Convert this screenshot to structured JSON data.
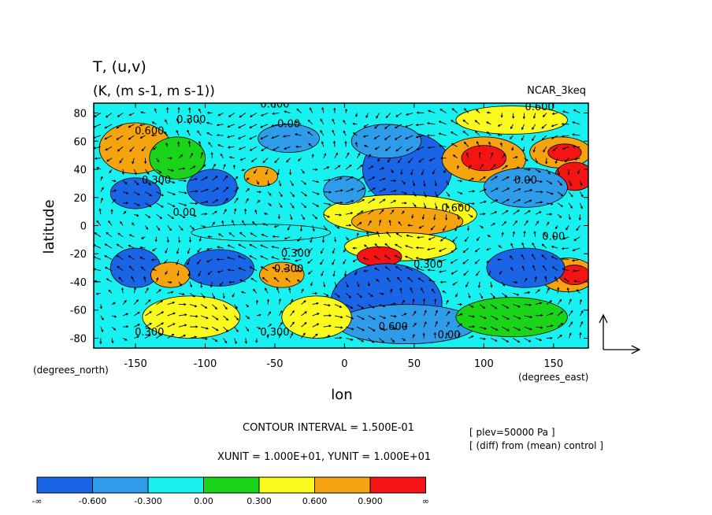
{
  "chart_data": {
    "type": "heatmap",
    "title": "T, (u,v)",
    "subtitle": "(K, (m s-1, m s-1))",
    "source": "NCAR_3keq",
    "xlabel": "lon",
    "ylabel": "latitude",
    "x_unit_label": "(degrees_east)",
    "y_unit_label": "(degrees_north)",
    "xlim": [
      -180,
      175
    ],
    "ylim": [
      -87,
      87
    ],
    "x_ticks": [
      {
        "value": -150,
        "label": "-150"
      },
      {
        "value": -100,
        "label": "-100"
      },
      {
        "value": -50,
        "label": "-50"
      },
      {
        "value": 0,
        "label": "0"
      },
      {
        "value": 50,
        "label": "50"
      },
      {
        "value": 100,
        "label": "100"
      },
      {
        "value": 150,
        "label": "150"
      }
    ],
    "y_ticks": [
      {
        "value": 80,
        "label": "80"
      },
      {
        "value": 60,
        "label": "60"
      },
      {
        "value": 40,
        "label": "40"
      },
      {
        "value": 20,
        "label": "20"
      },
      {
        "value": 0,
        "label": "0"
      },
      {
        "value": -20,
        "label": "-20"
      },
      {
        "value": -40,
        "label": "-40"
      },
      {
        "value": -60,
        "label": "-60"
      },
      {
        "value": -80,
        "label": "-80"
      }
    ],
    "contour_interval_text": "CONTOUR INTERVAL = 1.500E-01",
    "unit_text": "XUNIT = 1.000E+01, YUNIT = 1.000E+01",
    "notes": [
      "[ plev=50000 Pa ]",
      "[ (diff) from (mean) control ]"
    ],
    "colorbar": {
      "labels": [
        "-∞",
        "-0.600",
        "-0.300",
        "0.00",
        "0.300",
        "0.600",
        "0.900",
        "∞"
      ],
      "colors": [
        "#1a64e6",
        "#2e9ce8",
        "#19f0f0",
        "#19d419",
        "#fafa1e",
        "#f5a30f",
        "#f51414"
      ]
    },
    "contour_labels": [
      {
        "text": "0.600",
        "lon": -50,
        "lat": 84
      },
      {
        "text": "0.300",
        "lon": -110,
        "lat": 73
      },
      {
        "text": "0.600",
        "lon": -140,
        "lat": 65
      },
      {
        "text": "0.00",
        "lon": -40,
        "lat": 70
      },
      {
        "text": "0.600",
        "lon": 140,
        "lat": 82
      },
      {
        "text": "0.300",
        "lon": -135,
        "lat": 30
      },
      {
        "text": "0.00",
        "lon": 130,
        "lat": 30
      },
      {
        "text": "0.600",
        "lon": 80,
        "lat": 10
      },
      {
        "text": "0.00",
        "lon": -115,
        "lat": 7
      },
      {
        "text": "0.300",
        "lon": -35,
        "lat": -22
      },
      {
        "text": "0.300",
        "lon": -40,
        "lat": -33
      },
      {
        "text": "0.00",
        "lon": 150,
        "lat": -10
      },
      {
        "text": "0.300",
        "lon": 60,
        "lat": -30
      },
      {
        "text": "0.300",
        "lon": -140,
        "lat": -78
      },
      {
        "text": "0.300",
        "lon": -50,
        "lat": -78
      },
      {
        "text": "0.600",
        "lon": 35,
        "lat": -74
      },
      {
        "text": "0.00",
        "lon": 75,
        "lat": -80
      }
    ],
    "regions": [
      {
        "lon": -158,
        "lat": 58,
        "rx": 16,
        "ry": 10,
        "value": 1.0
      },
      {
        "lon": -150,
        "lat": 55,
        "rx": 26,
        "ry": 18,
        "value": 0.75
      },
      {
        "lon": -150,
        "lat": 23,
        "rx": 18,
        "ry": 11,
        "value": -0.75
      },
      {
        "lon": -95,
        "lat": 27,
        "rx": 18,
        "ry": 13,
        "value": -0.75
      },
      {
        "lon": -60,
        "lat": 35,
        "rx": 12,
        "ry": 7,
        "value": 0.75
      },
      {
        "lon": -40,
        "lat": 62,
        "rx": 22,
        "ry": 10,
        "value": -0.45
      },
      {
        "lon": -120,
        "lat": 48,
        "rx": 20,
        "ry": 15,
        "value": 0.15
      },
      {
        "lon": 45,
        "lat": 40,
        "rx": 32,
        "ry": 26,
        "value": -0.75
      },
      {
        "lon": 30,
        "lat": 60,
        "rx": 25,
        "ry": 12,
        "value": -0.45
      },
      {
        "lon": 100,
        "lat": 47,
        "rx": 30,
        "ry": 16,
        "value": 0.75
      },
      {
        "lon": 100,
        "lat": 48,
        "rx": 16,
        "ry": 9,
        "value": 1.0
      },
      {
        "lon": 155,
        "lat": 52,
        "rx": 22,
        "ry": 11,
        "value": 0.75
      },
      {
        "lon": 158,
        "lat": 52,
        "rx": 12,
        "ry": 6,
        "value": 1.0
      },
      {
        "lon": 165,
        "lat": 35,
        "rx": 14,
        "ry": 10,
        "value": 1.0
      },
      {
        "lon": 130,
        "lat": 27,
        "rx": 30,
        "ry": 14,
        "value": -0.45
      },
      {
        "lon": 120,
        "lat": 75,
        "rx": 40,
        "ry": 10,
        "value": 0.45
      },
      {
        "lon": 40,
        "lat": 8,
        "rx": 55,
        "ry": 14,
        "value": 0.45
      },
      {
        "lon": 45,
        "lat": 3,
        "rx": 40,
        "ry": 10,
        "value": 0.75
      },
      {
        "lon": 40,
        "lat": -15,
        "rx": 40,
        "ry": 10,
        "value": 0.45
      },
      {
        "lon": 25,
        "lat": -22,
        "rx": 16,
        "ry": 7,
        "value": 1.0
      },
      {
        "lon": 30,
        "lat": -55,
        "rx": 40,
        "ry": 28,
        "value": -0.75
      },
      {
        "lon": 45,
        "lat": -70,
        "rx": 50,
        "ry": 14,
        "value": -0.45
      },
      {
        "lon": -150,
        "lat": -30,
        "rx": 18,
        "ry": 14,
        "value": -0.75
      },
      {
        "lon": -90,
        "lat": -30,
        "rx": 25,
        "ry": 13,
        "value": -0.75
      },
      {
        "lon": -125,
        "lat": -35,
        "rx": 14,
        "ry": 9,
        "value": 0.75
      },
      {
        "lon": -45,
        "lat": -35,
        "rx": 16,
        "ry": 9,
        "value": 0.75
      },
      {
        "lon": -20,
        "lat": -65,
        "rx": 25,
        "ry": 15,
        "value": 0.45
      },
      {
        "lon": -110,
        "lat": -65,
        "rx": 35,
        "ry": 15,
        "value": 0.45
      },
      {
        "lon": 160,
        "lat": -35,
        "rx": 20,
        "ry": 12,
        "value": 0.75
      },
      {
        "lon": 165,
        "lat": -35,
        "rx": 11,
        "ry": 7,
        "value": 1.0
      },
      {
        "lon": 130,
        "lat": -30,
        "rx": 28,
        "ry": 14,
        "value": -0.75
      },
      {
        "lon": 120,
        "lat": -65,
        "rx": 40,
        "ry": 14,
        "value": 0.15
      },
      {
        "lon": 0,
        "lat": 25,
        "rx": 15,
        "ry": 10,
        "value": -0.45
      },
      {
        "lon": -60,
        "lat": -5,
        "rx": 50,
        "ry": 6,
        "value": -0.15
      }
    ]
  }
}
